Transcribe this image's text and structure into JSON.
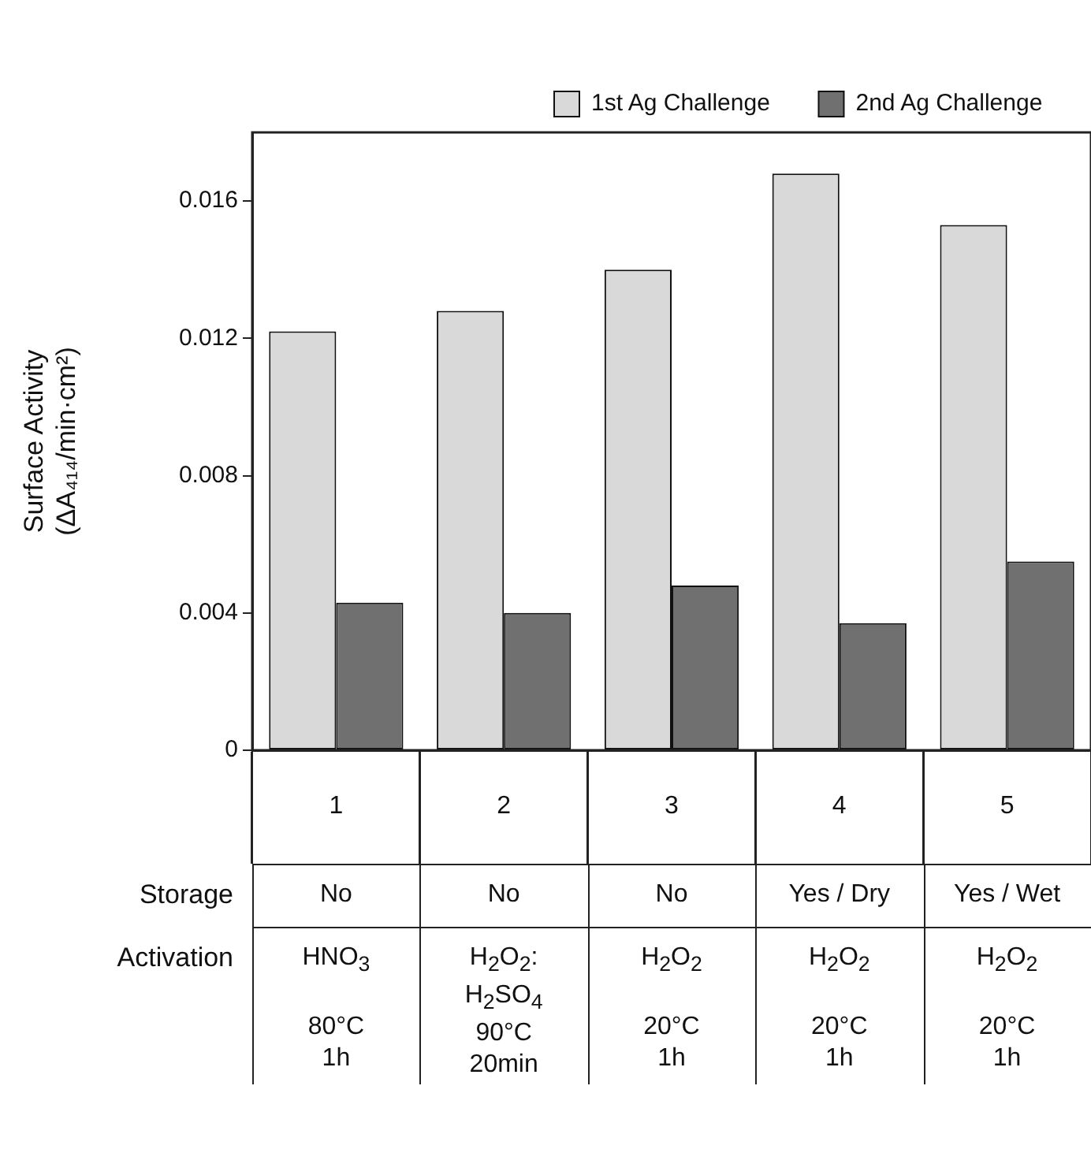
{
  "chart_data": {
    "type": "bar",
    "categories": [
      "1",
      "2",
      "3",
      "4",
      "5"
    ],
    "series": [
      {
        "name": "1st Ag Challenge",
        "color": "#d9d9d9",
        "values": [
          0.0122,
          0.0128,
          0.014,
          0.0168,
          0.0153
        ]
      },
      {
        "name": "2nd Ag Challenge",
        "color": "#707070",
        "values": [
          0.0043,
          0.004,
          0.0048,
          0.0037,
          0.0055
        ]
      }
    ],
    "ylabel": "Surface Activity\n(ΔA₄₁₄/min·cm²)",
    "ylim": [
      0,
      0.018
    ],
    "yticks": [
      0,
      0.004,
      0.008,
      0.012,
      0.016
    ],
    "grid": false,
    "legend": "top",
    "annotations": [
      "Storage",
      "No",
      "No",
      "No",
      "Yes / Dry",
      "Yes / Wet",
      "Activation",
      "HNO$_{3}$\n\n80°C\n1h",
      "H$_{2}$O$_{2}$:\nH$_{2}$SO$_{4}$\n90°C\n20min",
      "H$_{2}$O$_{2}$\n\n20°C\n1h",
      "H$_{2}$O$_{2}$\n\n20°C\n1h",
      "H$_{2}$O$_{2}$\n\n20°C\n1h"
    ]
  }
}
